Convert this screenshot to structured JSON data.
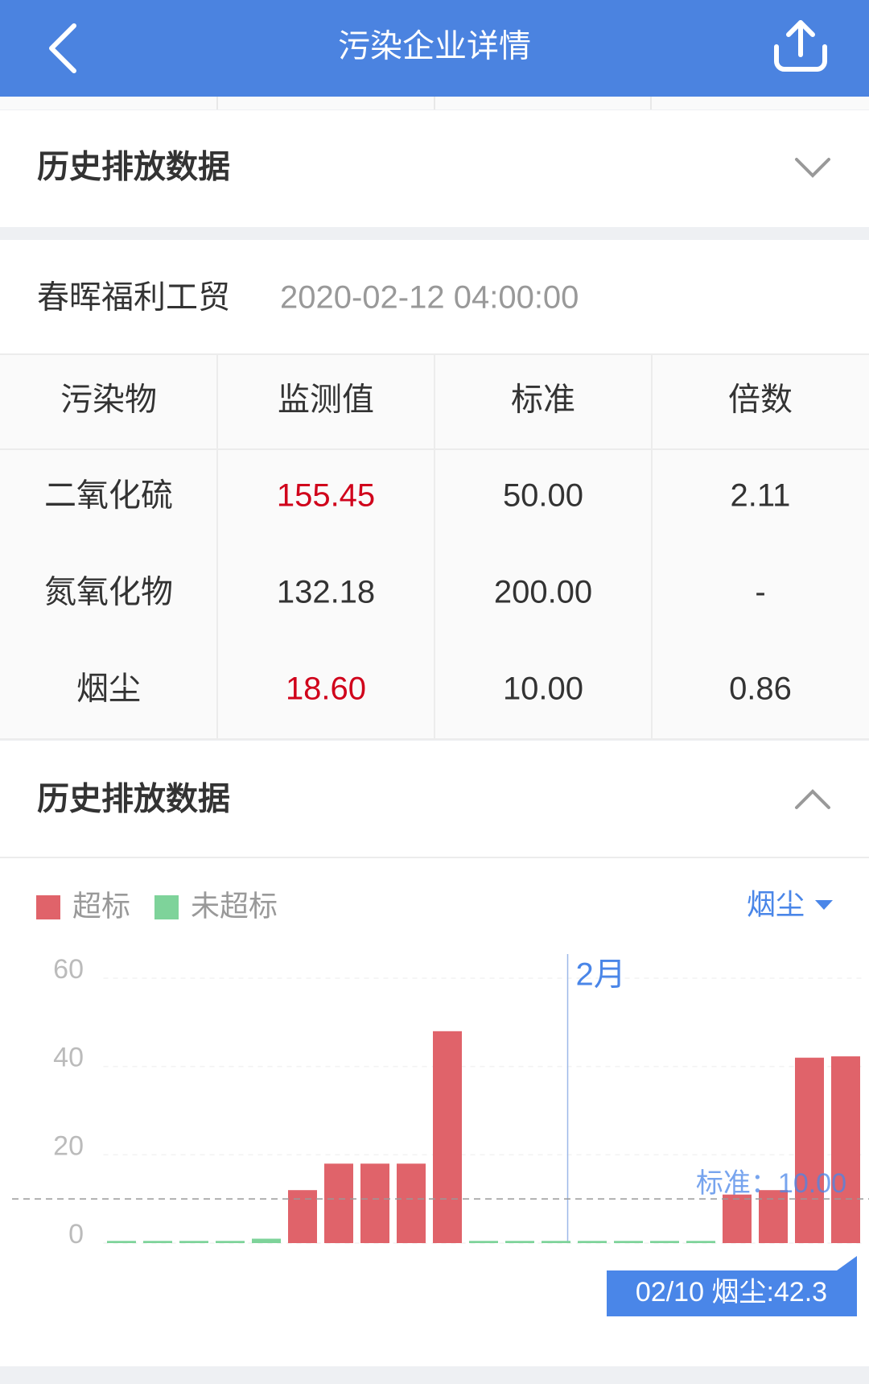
{
  "header": {
    "title": "污染企业详情"
  },
  "section1": {
    "title": "历史排放数据"
  },
  "record": {
    "company": "春晖福利工贸",
    "time": "2020-02-12 04:00:00"
  },
  "table": {
    "columns": [
      "污染物",
      "监测值",
      "标准",
      "倍数"
    ],
    "rows": [
      [
        "二氧化硫",
        "155.45",
        "50.00",
        "2.11"
      ],
      [
        "氮氧化物",
        "132.18",
        "200.00",
        "-"
      ],
      [
        "烟尘",
        "18.60",
        "10.00",
        "0.86"
      ]
    ],
    "over_limit": [
      true,
      false,
      true
    ],
    "alert_color": "#d0021b"
  },
  "section2": {
    "title": "历史排放数据"
  },
  "chart_data": {
    "type": "bar",
    "selector": "烟尘",
    "categories": [
      null,
      null,
      null,
      null,
      null,
      null,
      null,
      null,
      null,
      null,
      null,
      null,
      null,
      "2月",
      null,
      null,
      null,
      null,
      null,
      null,
      null
    ],
    "series": [
      {
        "name": "超标",
        "color": "#e0636a",
        "values": [
          null,
          null,
          null,
          null,
          null,
          12,
          18,
          18,
          18,
          48,
          null,
          null,
          null,
          null,
          null,
          null,
          null,
          11,
          12,
          42,
          42.3
        ]
      },
      {
        "name": "未超标",
        "color": "#7ed39a",
        "values": [
          0.5,
          0.5,
          0.5,
          0.5,
          1,
          null,
          null,
          null,
          null,
          null,
          0.5,
          0.5,
          0.5,
          0.5,
          0.5,
          0.5,
          0.5,
          null,
          null,
          null,
          null
        ]
      }
    ],
    "ylim": [
      0,
      60
    ],
    "yticks": [
      0,
      20,
      40,
      60
    ],
    "grid": true,
    "standard": {
      "value": 10,
      "label": "标准：10.00"
    },
    "tooltip": "02/10 烟尘:42.3"
  }
}
